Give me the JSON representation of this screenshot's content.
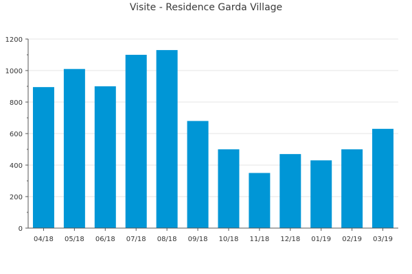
{
  "chart_data": {
    "type": "bar",
    "title": "Visite - Residence Garda Village",
    "xlabel": "",
    "ylabel": "",
    "categories": [
      "04/18",
      "05/18",
      "06/18",
      "07/18",
      "08/18",
      "09/18",
      "10/18",
      "11/18",
      "12/18",
      "01/19",
      "02/19",
      "03/19"
    ],
    "values": [
      895,
      1010,
      900,
      1100,
      1130,
      680,
      500,
      350,
      470,
      430,
      500,
      630
    ],
    "ylim": [
      0,
      1200
    ],
    "yticks": [
      0,
      200,
      400,
      600,
      800,
      1000,
      1200
    ],
    "yticklabels": [
      "0",
      "200",
      "400",
      "600",
      "800",
      "1000",
      "1200"
    ],
    "grid": true,
    "legend": "none",
    "colors": {
      "bar": "#0096d6",
      "grid": "#e6e6e6",
      "axis": "#555555"
    }
  }
}
